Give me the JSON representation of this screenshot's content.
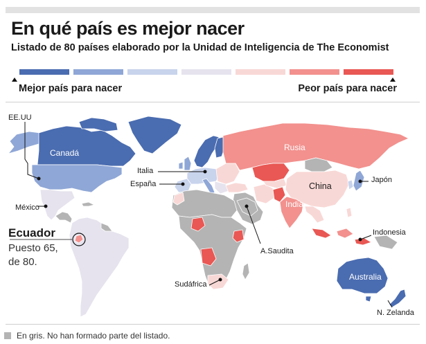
{
  "title": "En qué país es mejor nacer",
  "subtitle": "Listado de 80 países elaborado por la Unidad de Inteligencia de The Economist",
  "scale": {
    "colors": [
      "#4a6cb0",
      "#8fa7d6",
      "#c8d3ec",
      "#e6e3ee",
      "#f8d8d6",
      "#f2918e",
      "#e95854"
    ],
    "best_label": "Mejor país para nacer",
    "worst_label": "Peor país para nacer"
  },
  "colors": {
    "gray": "#b4b4b4",
    "ocean": "#ffffff",
    "border": "#ffffff"
  },
  "labels": {
    "eeuu": "EE.UU",
    "canada": "Canadá",
    "mexico": "México",
    "italia": "Italia",
    "espana": "España",
    "rusia": "Rusia",
    "china": "China",
    "india": "India",
    "japon": "Japón",
    "indonesia": "Indonesia",
    "asaudita": "A.Saudita",
    "sudafrica": "Sudáfrica",
    "australia": "Australia",
    "nzelanda": "N. Zelanda"
  },
  "ecuador": {
    "title": "Ecuador",
    "line1": "Puesto 65,",
    "line2": "de 80."
  },
  "legend": "En gris. No han formado parte del listado."
}
